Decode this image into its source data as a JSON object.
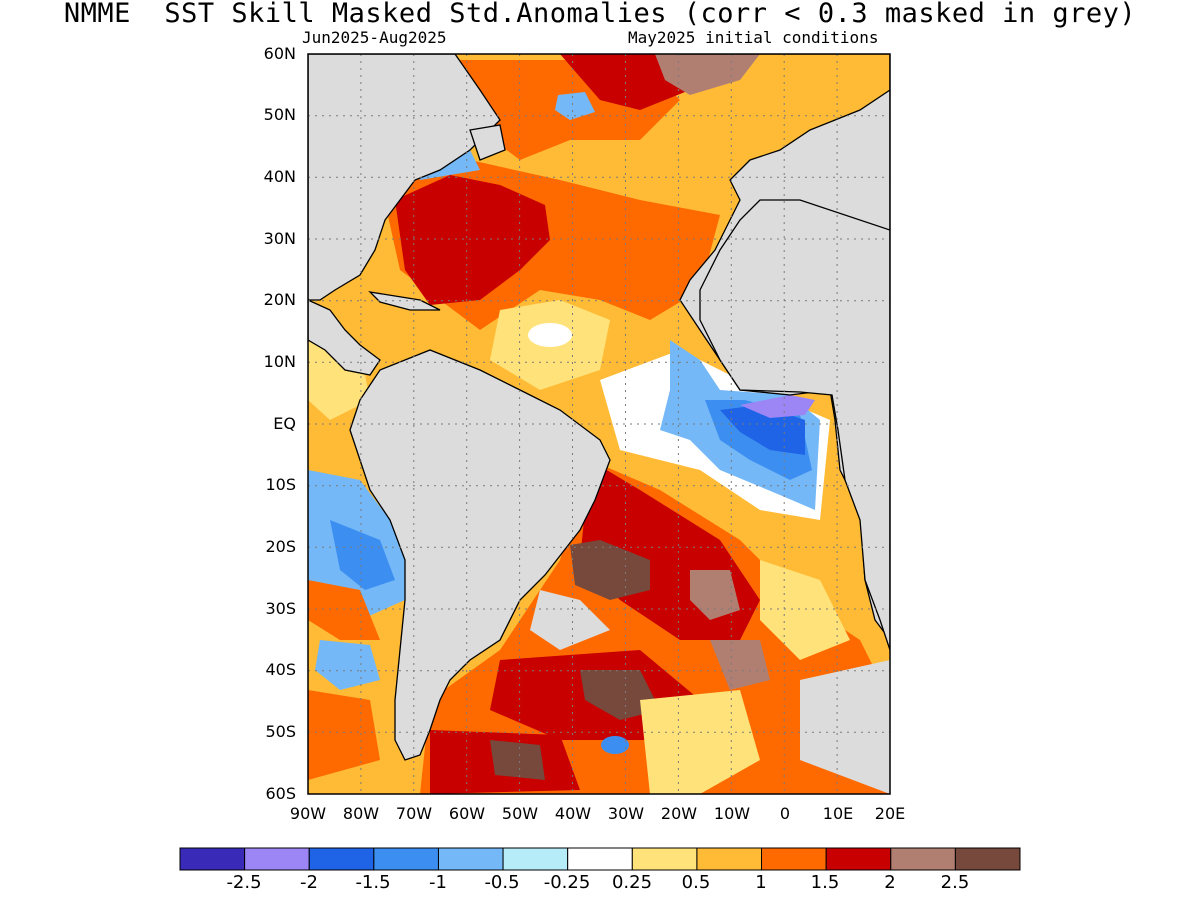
{
  "title": "NMME  SST Skill Masked Std.Anomalies (corr < 0.3 masked in grey)",
  "subtitle_left": "Jun2025-Aug2025",
  "subtitle_right": "May2025 initial conditions",
  "lat_labels": [
    "60N",
    "50N",
    "40N",
    "30N",
    "20N",
    "10N",
    "EQ",
    "10S",
    "20S",
    "30S",
    "40S",
    "50S",
    "60S"
  ],
  "lon_labels": [
    "90W",
    "80W",
    "70W",
    "60W",
    "50W",
    "40W",
    "30W",
    "20W",
    "10W",
    "0",
    "10E",
    "20E"
  ],
  "colorbar": {
    "colors": [
      "#3a2ab8",
      "#9c86f5",
      "#1f63e6",
      "#3c8ff0",
      "#74b8f7",
      "#b5ecf8",
      "#ffffff",
      "#ffe27a",
      "#ffbb35",
      "#ff6a00",
      "#c80000",
      "#b07f72",
      "#76493c"
    ],
    "labels": [
      "-2.5",
      "-2",
      "-1.5",
      "-1",
      "-0.5",
      "-0.25",
      "0.25",
      "0.5",
      "1",
      "1.5",
      "2",
      "2.5"
    ]
  },
  "colors": {
    "land": "#dcdcdc",
    "masked": "#dcdcdc",
    "coast": "#000000"
  }
}
